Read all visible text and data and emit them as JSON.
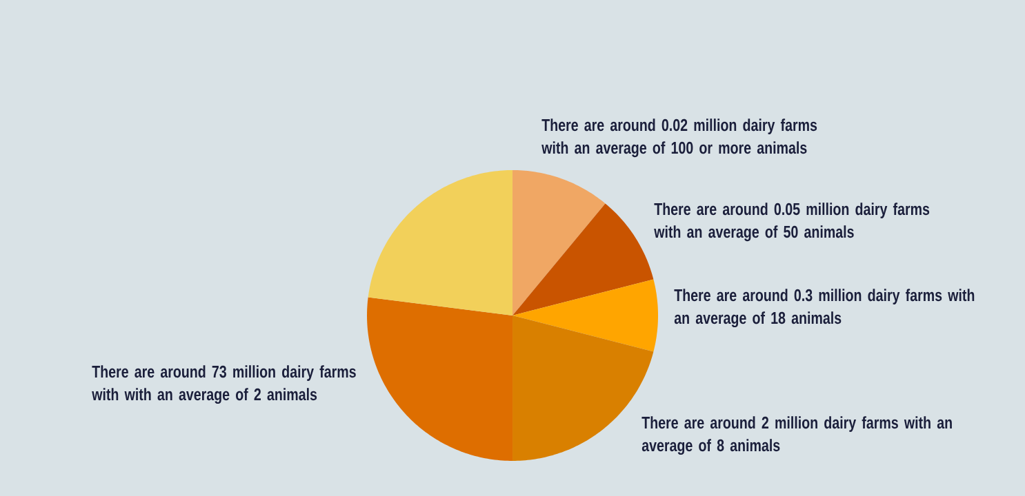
{
  "chart_data": {
    "type": "pie",
    "categories": [
      "There are around 0.02 million dairy farms with an average of 100 or more animals",
      "There are around 0.05 million dairy farms with an average of 50 animals",
      "There are around 0.3 million dairy farms with an average of 18 animals",
      "There are around 2 million dairy farms with an average of 8 animals",
      "There are around 73 million dairy farms with with an average of 2 animals",
      null
    ],
    "values": [
      11,
      10,
      8,
      21,
      27,
      23
    ],
    "colors": [
      "#f0a764",
      "#c95400",
      "#ffa500",
      "#d98000",
      "#de6e00",
      "#f2d05a"
    ]
  }
}
